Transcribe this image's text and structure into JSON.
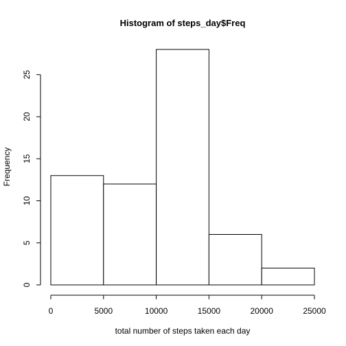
{
  "chart_data": {
    "type": "bar",
    "title": "Histogram of steps_day$Freq",
    "xlabel": "total number of steps taken each day",
    "ylabel": "Frequency",
    "bins": [
      {
        "start": 0,
        "end": 5000,
        "count": 13
      },
      {
        "start": 5000,
        "end": 10000,
        "count": 12
      },
      {
        "start": 10000,
        "end": 15000,
        "count": 28
      },
      {
        "start": 15000,
        "end": 20000,
        "count": 6
      },
      {
        "start": 20000,
        "end": 25000,
        "count": 2
      }
    ],
    "xlim": [
      0,
      25000
    ],
    "ylim": [
      0,
      28
    ],
    "x_ticks": [
      "0",
      "5000",
      "10000",
      "15000",
      "20000",
      "25000"
    ],
    "y_ticks": [
      "0",
      "5",
      "10",
      "15",
      "20",
      "25"
    ],
    "grid": false,
    "bar_fill": "#ffffff",
    "bar_stroke": "#000000"
  }
}
